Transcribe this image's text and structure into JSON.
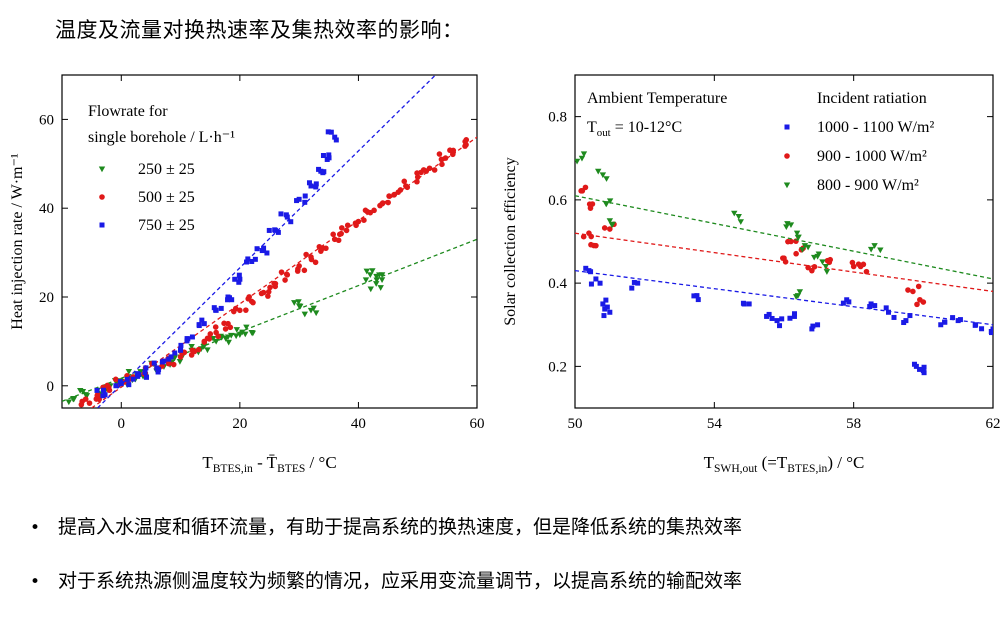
{
  "title": "温度及流量对换热速率及集热效率的影响：",
  "bullets": [
    "提高入水温度和循环流量，有助于提高系统的换热速度，但是降低系统的集热效率",
    "对于系统热源侧温度较为频繁的情况，应采用变流量调节，以提高系统的输配效率"
  ],
  "chart_data": [
    {
      "type": "scatter",
      "title": "",
      "xlabel": "T_BTES,in - T̄_BTES / °C",
      "ylabel": "Heat injection rate / W·m⁻¹",
      "xlim": [
        -10,
        60
      ],
      "ylim": [
        -5,
        70
      ],
      "x_ticks": [
        0,
        20,
        40,
        60
      ],
      "y_ticks": [
        0,
        20,
        40,
        60
      ],
      "grid": false,
      "legend_position": "top-left",
      "legend_title": [
        "Flowrate for",
        "single borehole / L·h⁻¹"
      ],
      "series": [
        {
          "name": "250 ± 25",
          "color": "#1e8a1e",
          "marker": "triangle-down",
          "points": [
            [
              -8,
              -3
            ],
            [
              -6,
              -2
            ],
            [
              -4,
              -1
            ],
            [
              -2,
              0
            ],
            [
              0,
              1
            ],
            [
              2,
              2
            ],
            [
              4,
              2.5
            ],
            [
              6,
              4
            ],
            [
              8,
              5
            ],
            [
              10,
              6.5
            ],
            [
              12,
              8
            ],
            [
              14,
              9
            ],
            [
              16,
              10
            ],
            [
              18,
              11
            ],
            [
              20,
              11.5
            ],
            [
              22,
              12
            ],
            [
              30,
              18
            ],
            [
              32,
              17
            ],
            [
              42,
              25
            ],
            [
              43,
              23
            ],
            [
              44,
              25
            ]
          ],
          "fit": [
            [
              -10,
              -3.5
            ],
            [
              60,
              33
            ]
          ]
        },
        {
          "name": "500 ± 25",
          "color": "#e01919",
          "marker": "circle",
          "points": [
            [
              -6,
              -3
            ],
            [
              -4,
              -2
            ],
            [
              -2,
              -1
            ],
            [
              0,
              0.5
            ],
            [
              2,
              2
            ],
            [
              4,
              3
            ],
            [
              6,
              4
            ],
            [
              8,
              5
            ],
            [
              10,
              6.5
            ],
            [
              12,
              8
            ],
            [
              14,
              10
            ],
            [
              16,
              12
            ],
            [
              18,
              14
            ],
            [
              20,
              17
            ],
            [
              22,
              19
            ],
            [
              24,
              21
            ],
            [
              26,
              23
            ],
            [
              28,
              25
            ],
            [
              30,
              27
            ],
            [
              32,
              29
            ],
            [
              34,
              31
            ],
            [
              36,
              33
            ],
            [
              38,
              35
            ],
            [
              40,
              37
            ],
            [
              42,
              39
            ],
            [
              44,
              41
            ],
            [
              46,
              43
            ],
            [
              48,
              45
            ],
            [
              50,
              47
            ],
            [
              52,
              49
            ],
            [
              54,
              51
            ],
            [
              56,
              53
            ],
            [
              58,
              55
            ]
          ],
          "fit": [
            [
              -5,
              -5
            ],
            [
              60,
              56
            ]
          ]
        },
        {
          "name": "750 ± 25",
          "color": "#1a1ae6",
          "marker": "square",
          "points": [
            [
              -3,
              -1
            ],
            [
              0,
              0.5
            ],
            [
              2,
              1.5
            ],
            [
              4,
              3
            ],
            [
              6,
              4
            ],
            [
              8,
              6
            ],
            [
              10,
              8
            ],
            [
              12,
              11
            ],
            [
              14,
              14
            ],
            [
              16,
              17
            ],
            [
              18,
              20
            ],
            [
              20,
              24
            ],
            [
              22,
              28
            ],
            [
              24,
              31
            ],
            [
              26,
              35
            ],
            [
              28,
              38
            ],
            [
              30,
              42
            ],
            [
              32,
              45
            ],
            [
              34,
              48
            ],
            [
              35,
              52
            ],
            [
              36,
              56
            ]
          ],
          "fit": [
            [
              -4,
              -5
            ],
            [
              53,
              70
            ]
          ]
        }
      ]
    },
    {
      "type": "scatter",
      "title": "",
      "xlabel": "T_SWH,out (=T_BTES,in) / °C",
      "ylabel": "Solar collection efficiency",
      "xlim": [
        50,
        62
      ],
      "ylim": [
        0.1,
        0.9
      ],
      "x_ticks": [
        50,
        54,
        58,
        62
      ],
      "y_ticks": [
        0.2,
        0.4,
        0.6,
        0.8
      ],
      "grid": false,
      "annotation": [
        "Ambient Temperature",
        "T_out = 10-12°C"
      ],
      "legend_title": "Incident ratiation",
      "legend_position": "top-right",
      "series": [
        {
          "name": "1000 - 1100 W/m²",
          "color": "#1a1ae6",
          "marker": "square",
          "points": [
            [
              50.4,
              0.43
            ],
            [
              50.6,
              0.41
            ],
            [
              50.8,
              0.35
            ],
            [
              51,
              0.33
            ],
            [
              51.8,
              0.4
            ],
            [
              53.5,
              0.37
            ],
            [
              55,
              0.35
            ],
            [
              55.5,
              0.32
            ],
            [
              55.8,
              0.31
            ],
            [
              56.3,
              0.32
            ],
            [
              56.8,
              0.29
            ],
            [
              57.8,
              0.36
            ],
            [
              58.5,
              0.35
            ],
            [
              59,
              0.33
            ],
            [
              59.5,
              0.31
            ],
            [
              59.8,
              0.2
            ],
            [
              60,
              0.19
            ],
            [
              60.5,
              0.3
            ],
            [
              61,
              0.31
            ],
            [
              61.5,
              0.3
            ],
            [
              62,
              0.29
            ]
          ],
          "fit": [
            [
              50,
              0.43
            ],
            [
              62,
              0.3
            ]
          ]
        },
        {
          "name": "900 - 1000 W/m²",
          "color": "#e01919",
          "marker": "circle",
          "points": [
            [
              50.3,
              0.63
            ],
            [
              50.5,
              0.59
            ],
            [
              50.4,
              0.52
            ],
            [
              50.6,
              0.49
            ],
            [
              51,
              0.53
            ],
            [
              56,
              0.46
            ],
            [
              56.2,
              0.5
            ],
            [
              56.5,
              0.48
            ],
            [
              56.8,
              0.43
            ],
            [
              57.3,
              0.45
            ],
            [
              58,
              0.44
            ],
            [
              58.2,
              0.44
            ],
            [
              59.7,
              0.38
            ],
            [
              59.9,
              0.36
            ]
          ],
          "fit": [
            [
              50,
              0.52
            ],
            [
              62,
              0.38
            ]
          ]
        },
        {
          "name": "800 - 900 W/m²",
          "color": "#1e8a1e",
          "marker": "triangle-down",
          "points": [
            [
              50.2,
              0.7
            ],
            [
              50.8,
              0.66
            ],
            [
              50.9,
              0.59
            ],
            [
              51,
              0.55
            ],
            [
              54.7,
              0.56
            ],
            [
              56.2,
              0.54
            ],
            [
              56.4,
              0.51
            ],
            [
              56.6,
              0.49
            ],
            [
              57,
              0.47
            ],
            [
              57.2,
              0.44
            ],
            [
              56.4,
              0.37
            ],
            [
              58.6,
              0.49
            ]
          ],
          "fit": [
            [
              50,
              0.61
            ],
            [
              62,
              0.41
            ]
          ]
        }
      ]
    }
  ]
}
